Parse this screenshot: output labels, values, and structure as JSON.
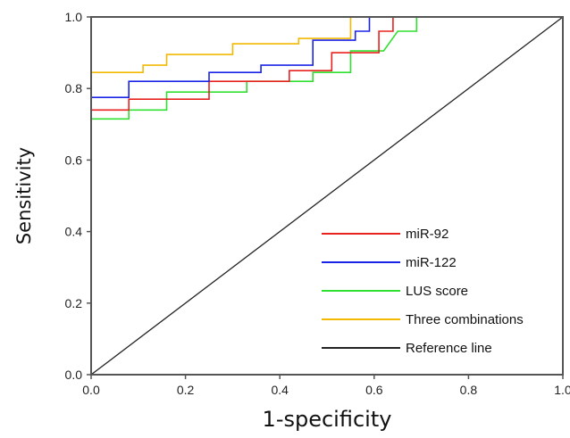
{
  "chart_data": {
    "type": "line",
    "title": "",
    "xlabel": "1-specificity",
    "ylabel": "Sensitivity",
    "xlim": [
      0,
      1
    ],
    "ylim": [
      0,
      1
    ],
    "x_ticks": [
      "0.0",
      "0.2",
      "0.4",
      "0.6",
      "0.8",
      "1.0"
    ],
    "y_ticks": [
      "0.0",
      "0.2",
      "0.4",
      "0.6",
      "0.8",
      "1.0"
    ],
    "grid": false,
    "legend_position": "bottom-right",
    "series": [
      {
        "name": "miR-92",
        "color": "#e8221f",
        "points": [
          [
            0,
            0.74
          ],
          [
            0.08,
            0.74
          ],
          [
            0.08,
            0.77
          ],
          [
            0.25,
            0.77
          ],
          [
            0.25,
            0.82
          ],
          [
            0.42,
            0.82
          ],
          [
            0.42,
            0.85
          ],
          [
            0.51,
            0.85
          ],
          [
            0.51,
            0.9
          ],
          [
            0.61,
            0.9
          ],
          [
            0.61,
            0.96
          ],
          [
            0.64,
            0.96
          ],
          [
            0.64,
            1.0
          ],
          [
            1.0,
            1.0
          ]
        ]
      },
      {
        "name": "miR-122",
        "color": "#1a24e6",
        "points": [
          [
            0,
            0.775
          ],
          [
            0.08,
            0.775
          ],
          [
            0.08,
            0.82
          ],
          [
            0.25,
            0.82
          ],
          [
            0.25,
            0.845
          ],
          [
            0.36,
            0.845
          ],
          [
            0.36,
            0.865
          ],
          [
            0.47,
            0.865
          ],
          [
            0.47,
            0.935
          ],
          [
            0.56,
            0.935
          ],
          [
            0.56,
            0.96
          ],
          [
            0.59,
            0.96
          ],
          [
            0.59,
            1.0
          ],
          [
            1.0,
            1.0
          ]
        ]
      },
      {
        "name": "LUS score",
        "color": "#30e030",
        "points": [
          [
            0,
            0.715
          ],
          [
            0.08,
            0.715
          ],
          [
            0.08,
            0.74
          ],
          [
            0.16,
            0.74
          ],
          [
            0.16,
            0.79
          ],
          [
            0.33,
            0.79
          ],
          [
            0.33,
            0.82
          ],
          [
            0.47,
            0.82
          ],
          [
            0.47,
            0.845
          ],
          [
            0.55,
            0.845
          ],
          [
            0.55,
            0.905
          ],
          [
            0.62,
            0.905
          ],
          [
            0.65,
            0.96
          ],
          [
            0.69,
            0.96
          ],
          [
            0.69,
            1.0
          ],
          [
            1.0,
            1.0
          ]
        ]
      },
      {
        "name": "Three combinations",
        "color": "#f2b900",
        "points": [
          [
            0,
            0.845
          ],
          [
            0.11,
            0.845
          ],
          [
            0.11,
            0.865
          ],
          [
            0.16,
            0.865
          ],
          [
            0.16,
            0.895
          ],
          [
            0.3,
            0.895
          ],
          [
            0.3,
            0.925
          ],
          [
            0.44,
            0.925
          ],
          [
            0.44,
            0.94
          ],
          [
            0.55,
            0.94
          ],
          [
            0.55,
            1.0
          ],
          [
            1.0,
            1.0
          ]
        ]
      },
      {
        "name": "Reference line",
        "color": "#222222",
        "points": [
          [
            0,
            0
          ],
          [
            1,
            1
          ]
        ]
      }
    ]
  }
}
